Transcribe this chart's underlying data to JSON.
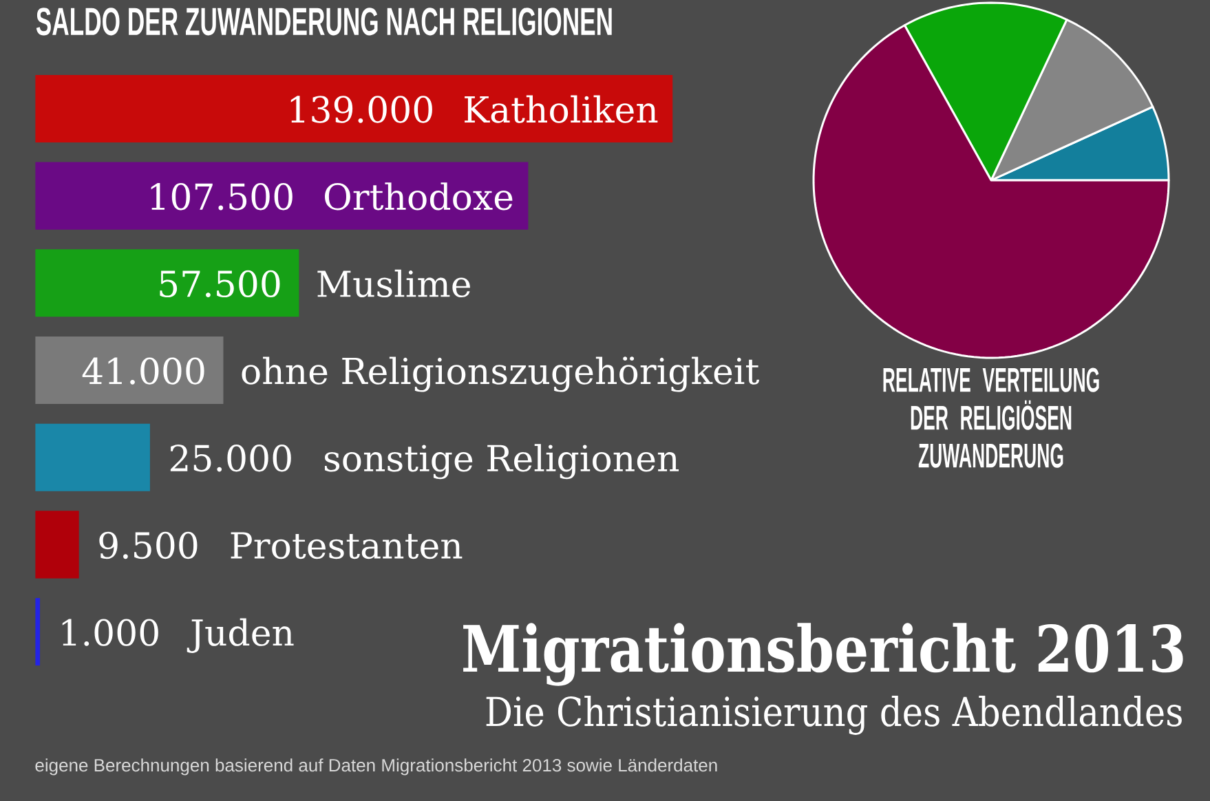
{
  "chart_data": [
    {
      "type": "bar",
      "orientation": "horizontal",
      "title": "SALDO DER ZUWANDERUNG NACH RELIGIONEN",
      "categories": [
        "Katholiken",
        "Orthodoxe",
        "Muslime",
        "ohne Religionszugehörigkeit",
        "sonstige Religionen",
        "Protestanten",
        "Juden"
      ],
      "values": [
        139000,
        107500,
        57500,
        41000,
        25000,
        9500,
        1000
      ],
      "colors": [
        "#c80a0a",
        "#6a0a85",
        "#16a016",
        "#7a7a7a",
        "#1a87a8",
        "#b0000a",
        "#2424e6"
      ],
      "value_labels": [
        "139.000",
        "107.500",
        "57.500",
        "41.000",
        "25.000",
        "9.500",
        "1.000"
      ],
      "xlim": [
        0,
        139000
      ],
      "annotations": [
        "Migrationsbericht 2013",
        "Die Christianisierung des Abendlandes",
        "eigene Berechnungen basierend auf Daten Migrationsbericht 2013 sowie Länderdaten"
      ]
    },
    {
      "type": "pie",
      "title": "RELATIVE VERTEILUNG DER RELIGIÖSEN ZUWANDERUNG",
      "categories": [
        null,
        null,
        null,
        null
      ],
      "values": [
        6.8,
        11.2,
        15.1,
        66.9
      ],
      "colors": [
        "#137f9c",
        "#858585",
        "#0aa60a",
        "#830045"
      ]
    }
  ]
}
